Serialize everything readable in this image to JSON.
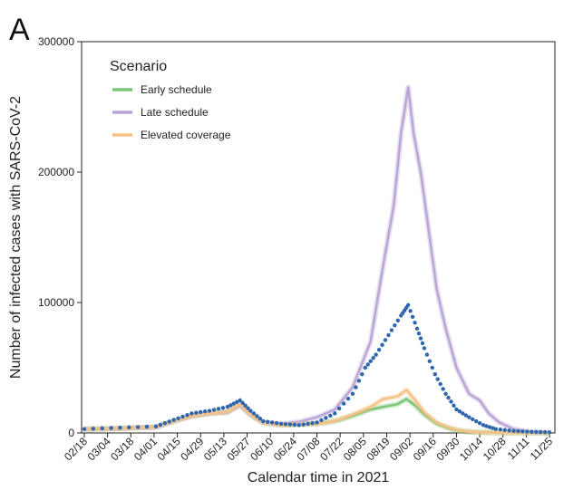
{
  "panel_label": "A",
  "chart_data": {
    "type": "line",
    "xlabel": "Calendar time in 2021",
    "ylabel": "Number of infected cases with SARS-CoV-2",
    "ylim": [
      0,
      300000
    ],
    "yticks": [
      0,
      100000,
      200000,
      300000
    ],
    "xticks": [
      "02/18",
      "03/04",
      "03/18",
      "04/01",
      "04/15",
      "04/29",
      "05/13",
      "05/27",
      "06/10",
      "06/24",
      "07/08",
      "07/22",
      "08/05",
      "08/19",
      "09/02",
      "09/16",
      "09/30",
      "10/14",
      "10/28",
      "11/11",
      "11/25"
    ],
    "legend": {
      "title": "Scenario",
      "placement": "top-left"
    },
    "series": [
      {
        "name": "Early schedule",
        "color": "#7cc576",
        "style": "line",
        "points": [
          [
            0,
            3000
          ],
          [
            2,
            3500
          ],
          [
            4,
            4500
          ],
          [
            5,
            9000
          ],
          [
            6,
            13000
          ],
          [
            7,
            15000
          ],
          [
            8,
            16000
          ],
          [
            8.7,
            22000
          ],
          [
            9.3,
            14000
          ],
          [
            10,
            8000
          ],
          [
            11,
            6000
          ],
          [
            12,
            6500
          ],
          [
            13,
            7000
          ],
          [
            14,
            9000
          ],
          [
            15,
            13000
          ],
          [
            16,
            18000
          ],
          [
            16.7,
            20000
          ],
          [
            17.5,
            22000
          ],
          [
            18,
            26000
          ],
          [
            18.5,
            21000
          ],
          [
            19,
            14000
          ],
          [
            19.7,
            7000
          ],
          [
            20.5,
            3000
          ],
          [
            21.3,
            1000
          ],
          [
            22,
            500
          ],
          [
            23,
            200
          ],
          [
            25,
            100
          ],
          [
            26,
            100
          ]
        ]
      },
      {
        "name": "Late schedule",
        "color": "#b9a6d6",
        "style": "line",
        "points": [
          [
            0,
            3000
          ],
          [
            2,
            3500
          ],
          [
            4,
            4500
          ],
          [
            5,
            9000
          ],
          [
            6,
            13000
          ],
          [
            7,
            15000
          ],
          [
            8,
            16000
          ],
          [
            8.7,
            21000
          ],
          [
            9.3,
            14000
          ],
          [
            10,
            8000
          ],
          [
            11,
            7000
          ],
          [
            12,
            8500
          ],
          [
            13,
            12000
          ],
          [
            14,
            18000
          ],
          [
            15,
            35000
          ],
          [
            16,
            70000
          ],
          [
            16.7,
            128000
          ],
          [
            17.3,
            175000
          ],
          [
            17.7,
            230000
          ],
          [
            18.1,
            265000
          ],
          [
            18.4,
            230000
          ],
          [
            18.8,
            200000
          ],
          [
            19.3,
            150000
          ],
          [
            19.7,
            110000
          ],
          [
            20.2,
            80000
          ],
          [
            20.8,
            50000
          ],
          [
            21.5,
            30000
          ],
          [
            22.1,
            25000
          ],
          [
            22.6,
            15000
          ],
          [
            23.2,
            8000
          ],
          [
            24,
            3000
          ],
          [
            25,
            800
          ],
          [
            26,
            300
          ]
        ]
      },
      {
        "name": "Elevated coverage",
        "color": "#f5c186",
        "style": "line",
        "points": [
          [
            0,
            3000
          ],
          [
            2,
            3500
          ],
          [
            4,
            4500
          ],
          [
            5,
            9000
          ],
          [
            6,
            13000
          ],
          [
            7,
            15000
          ],
          [
            8,
            16000
          ],
          [
            8.7,
            22000
          ],
          [
            9.3,
            14000
          ],
          [
            10,
            8000
          ],
          [
            11,
            6000
          ],
          [
            12,
            6500
          ],
          [
            13,
            7000
          ],
          [
            14,
            9000
          ],
          [
            15,
            14000
          ],
          [
            16,
            20000
          ],
          [
            16.7,
            26000
          ],
          [
            17.5,
            28000
          ],
          [
            18,
            33000
          ],
          [
            18.5,
            25000
          ],
          [
            19,
            16000
          ],
          [
            19.7,
            8000
          ],
          [
            20.5,
            3500
          ],
          [
            21.3,
            1200
          ],
          [
            22,
            500
          ],
          [
            23,
            200
          ],
          [
            25,
            100
          ],
          [
            26,
            100
          ]
        ]
      },
      {
        "name": "",
        "color": "#2e67ad",
        "style": "dots",
        "points": [
          [
            0,
            3000
          ],
          [
            2,
            4000
          ],
          [
            4,
            5000
          ],
          [
            5,
            10000
          ],
          [
            6,
            15000
          ],
          [
            7,
            17000
          ],
          [
            8,
            20000
          ],
          [
            8.7,
            25000
          ],
          [
            9.3,
            17000
          ],
          [
            10,
            9000
          ],
          [
            11,
            7000
          ],
          [
            12,
            6000
          ],
          [
            13,
            8000
          ],
          [
            14,
            15000
          ],
          [
            15,
            30000
          ],
          [
            15.7,
            50000
          ],
          [
            16.3,
            60000
          ],
          [
            17,
            75000
          ],
          [
            17.7,
            90000
          ],
          [
            18.1,
            98000
          ],
          [
            18.6,
            80000
          ],
          [
            19,
            65000
          ],
          [
            19.6,
            45000
          ],
          [
            20.2,
            30000
          ],
          [
            20.8,
            18000
          ],
          [
            21.5,
            12000
          ],
          [
            22.3,
            6000
          ],
          [
            23,
            3000
          ],
          [
            24,
            1500
          ],
          [
            25,
            800
          ],
          [
            26,
            500
          ]
        ]
      }
    ]
  }
}
